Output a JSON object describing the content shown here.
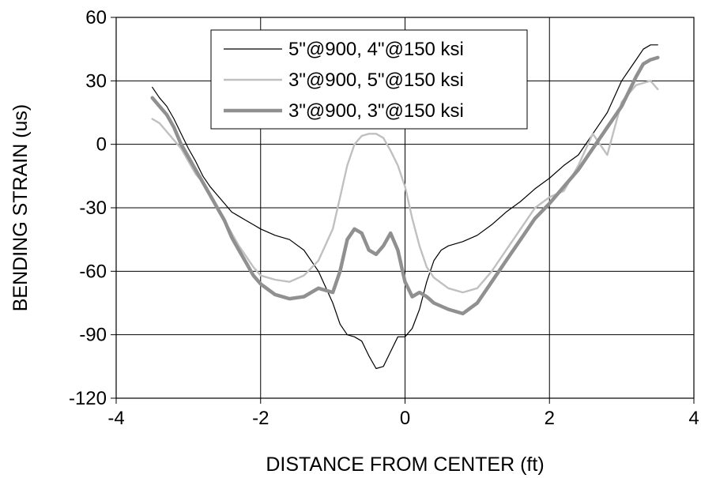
{
  "chart_data": {
    "type": "line",
    "title": "",
    "xlabel": "DISTANCE FROM CENTER (ft)",
    "ylabel": "BENDING STRAIN (us)",
    "xlim": [
      -4,
      4
    ],
    "ylim": [
      -120,
      60
    ],
    "x_ticks": [
      -4,
      -2,
      0,
      2,
      4
    ],
    "y_ticks": [
      -120,
      -90,
      -60,
      -30,
      0,
      30,
      60
    ],
    "x_tick_labels": [
      "-4",
      "-2",
      "0",
      "2",
      "4"
    ],
    "y_tick_labels": [
      "-120",
      "-90",
      "-60",
      "-30",
      "0",
      "30",
      "60"
    ],
    "grid": true,
    "legend_position": "top-center",
    "series": [
      {
        "name": "5\"@900, 4\"@150 ksi",
        "color": "#000000",
        "style": "thin",
        "x": [
          -3.5,
          -3.4,
          -3.3,
          -3.2,
          -3.1,
          -3.0,
          -2.9,
          -2.8,
          -2.7,
          -2.6,
          -2.5,
          -2.4,
          -2.3,
          -2.2,
          -2.1,
          -2.0,
          -1.8,
          -1.6,
          -1.4,
          -1.2,
          -1.0,
          -0.9,
          -0.8,
          -0.7,
          -0.6,
          -0.5,
          -0.4,
          -0.3,
          -0.2,
          -0.1,
          0.0,
          0.1,
          0.2,
          0.3,
          0.4,
          0.5,
          0.6,
          0.8,
          1.0,
          1.2,
          1.4,
          1.6,
          1.8,
          2.0,
          2.2,
          2.4,
          2.6,
          2.8,
          3.0,
          3.1,
          3.2,
          3.3,
          3.4,
          3.5
        ],
        "y": [
          27,
          22,
          18,
          12,
          5,
          -2,
          -8,
          -15,
          -20,
          -24,
          -28,
          -32,
          -34,
          -36,
          -38,
          -40,
          -43,
          -45,
          -50,
          -60,
          -75,
          -85,
          -90,
          -91,
          -93,
          -100,
          -106,
          -105,
          -98,
          -91,
          -91,
          -87,
          -78,
          -65,
          -55,
          -50,
          -48,
          -46,
          -43,
          -38,
          -32,
          -27,
          -21,
          -16,
          -10,
          -5,
          5,
          15,
          30,
          35,
          40,
          45,
          47,
          47
        ]
      },
      {
        "name": "3\"@900, 5\"@150 ksi",
        "color": "#c0c0c0",
        "style": "medium",
        "x": [
          -3.5,
          -3.4,
          -3.3,
          -3.2,
          -3.1,
          -3.0,
          -2.9,
          -2.8,
          -2.7,
          -2.6,
          -2.5,
          -2.4,
          -2.3,
          -2.2,
          -2.1,
          -2.0,
          -1.8,
          -1.6,
          -1.4,
          -1.2,
          -1.0,
          -0.9,
          -0.8,
          -0.7,
          -0.6,
          -0.5,
          -0.4,
          -0.3,
          -0.2,
          -0.1,
          0.0,
          0.1,
          0.2,
          0.3,
          0.4,
          0.6,
          0.8,
          1.0,
          1.2,
          1.4,
          1.6,
          1.8,
          2.0,
          2.2,
          2.4,
          2.6,
          2.8,
          3.0,
          3.2,
          3.4,
          3.5
        ],
        "y": [
          12,
          10,
          6,
          2,
          -2,
          -8,
          -14,
          -18,
          -24,
          -30,
          -36,
          -42,
          -48,
          -53,
          -58,
          -62,
          -64,
          -65,
          -62,
          -55,
          -40,
          -25,
          -10,
          0,
          4,
          5,
          5,
          3,
          -3,
          -10,
          -20,
          -35,
          -48,
          -58,
          -63,
          -68,
          -70,
          -68,
          -60,
          -50,
          -40,
          -30,
          -25,
          -22,
          -10,
          5,
          -5,
          20,
          28,
          30,
          26
        ]
      },
      {
        "name": "3\"@900, 3\"@150 ksi",
        "color": "#909090",
        "style": "thick",
        "x": [
          -3.5,
          -3.4,
          -3.3,
          -3.2,
          -3.1,
          -3.0,
          -2.9,
          -2.8,
          -2.7,
          -2.6,
          -2.5,
          -2.4,
          -2.3,
          -2.2,
          -2.1,
          -2.0,
          -1.8,
          -1.6,
          -1.4,
          -1.2,
          -1.0,
          -0.9,
          -0.8,
          -0.7,
          -0.6,
          -0.5,
          -0.4,
          -0.3,
          -0.2,
          -0.1,
          0.0,
          0.1,
          0.2,
          0.3,
          0.4,
          0.6,
          0.8,
          1.0,
          1.2,
          1.4,
          1.6,
          1.8,
          2.0,
          2.2,
          2.4,
          2.6,
          2.8,
          3.0,
          3.1,
          3.2,
          3.3,
          3.4,
          3.5
        ],
        "y": [
          22,
          18,
          14,
          8,
          0,
          -6,
          -12,
          -18,
          -24,
          -30,
          -36,
          -44,
          -50,
          -56,
          -62,
          -66,
          -71,
          -73,
          -72,
          -68,
          -70,
          -60,
          -45,
          -40,
          -42,
          -50,
          -52,
          -48,
          -42,
          -50,
          -65,
          -72,
          -70,
          -72,
          -75,
          -78,
          -80,
          -75,
          -65,
          -55,
          -45,
          -35,
          -28,
          -20,
          -12,
          -2,
          8,
          18,
          25,
          32,
          38,
          40,
          41
        ]
      }
    ]
  }
}
